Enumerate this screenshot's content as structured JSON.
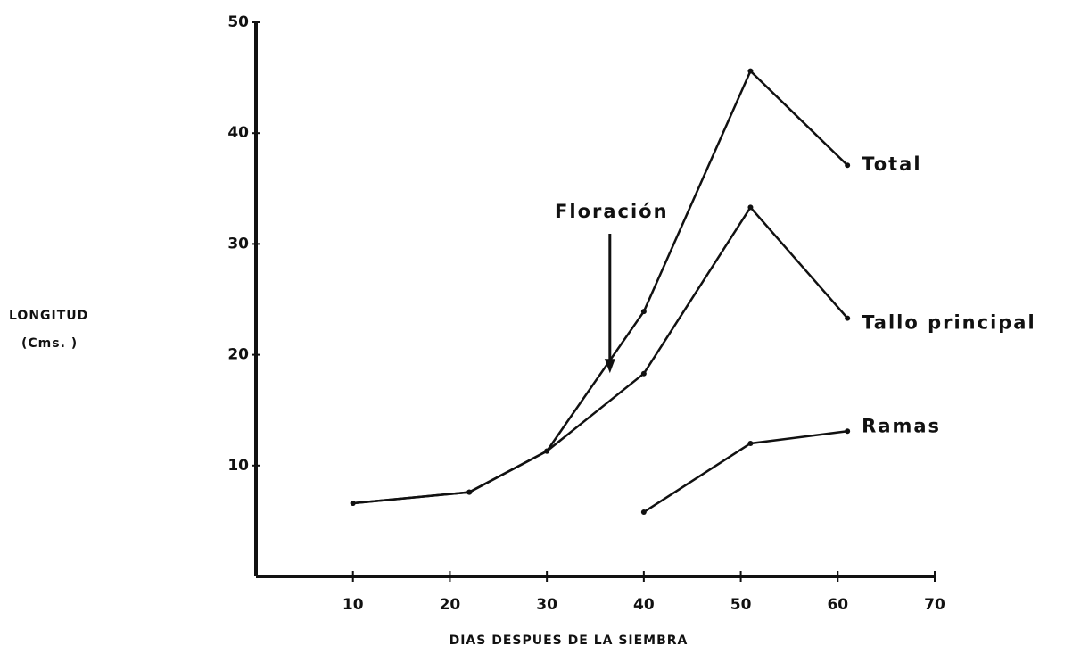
{
  "chart_data": {
    "type": "line",
    "x_label": "DIAS DESPUES DE LA SIEMBRA",
    "y_label": [
      "LONGITUD",
      "(Cms. )"
    ],
    "x": [
      10,
      22,
      30,
      40,
      51,
      61
    ],
    "series": [
      {
        "name": "Total",
        "color": "#111111",
        "values": [
          6.6,
          7.6,
          11.3,
          23.9,
          45.6,
          37.1
        ]
      },
      {
        "name": "Tallo principal",
        "color": "#111111",
        "values": [
          6.6,
          7.6,
          11.3,
          18.3,
          33.3,
          23.3
        ]
      },
      {
        "name": "Ramas",
        "color": "#111111",
        "values": [
          null,
          null,
          null,
          5.8,
          12,
          13.1
        ]
      }
    ],
    "annotation": {
      "text": "Floración",
      "x": 36.5,
      "y": 18.5
    },
    "xlim": [
      0,
      70
    ],
    "ylim": [
      0,
      50
    ],
    "xticks": [
      10,
      20,
      30,
      40,
      50,
      60,
      70
    ],
    "yticks": [
      10,
      20,
      30,
      40,
      50
    ],
    "grid": false
  }
}
